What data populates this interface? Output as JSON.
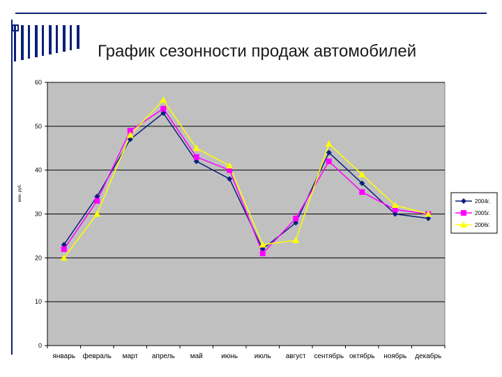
{
  "slide": {
    "title": "График сезонности продаж автомобилей"
  },
  "colors": {
    "frame_blue": "#0a1f7a",
    "plot_bg": "#c0c0c0"
  },
  "chart_data": {
    "type": "line",
    "title": "",
    "xlabel": "",
    "ylabel": "млн. руб.",
    "categories": [
      "январь",
      "февраль",
      "март",
      "апрель",
      "май",
      "июнь",
      "июль",
      "август",
      "сентябрь",
      "октябрь",
      "ноябрь",
      "декабрь"
    ],
    "ylim": [
      0,
      60
    ],
    "yticks": [
      0,
      10,
      20,
      30,
      40,
      50,
      60
    ],
    "grid": true,
    "legend_position": "right",
    "series": [
      {
        "name": "2004г.",
        "color": "#0a1f7a",
        "marker": "diamond",
        "values": [
          23,
          34,
          47,
          53,
          42,
          38,
          22,
          28,
          44,
          37,
          30,
          29
        ]
      },
      {
        "name": "2005г.",
        "color": "#ff00ff",
        "marker": "square",
        "values": [
          22,
          33,
          49,
          54,
          43,
          40,
          21,
          29,
          42,
          35,
          31,
          30
        ]
      },
      {
        "name": "2006г.",
        "color": "#ffff00",
        "marker": "triangle",
        "values": [
          20,
          30,
          48,
          56,
          45,
          41,
          23,
          24,
          46,
          39,
          32,
          30
        ]
      }
    ]
  }
}
